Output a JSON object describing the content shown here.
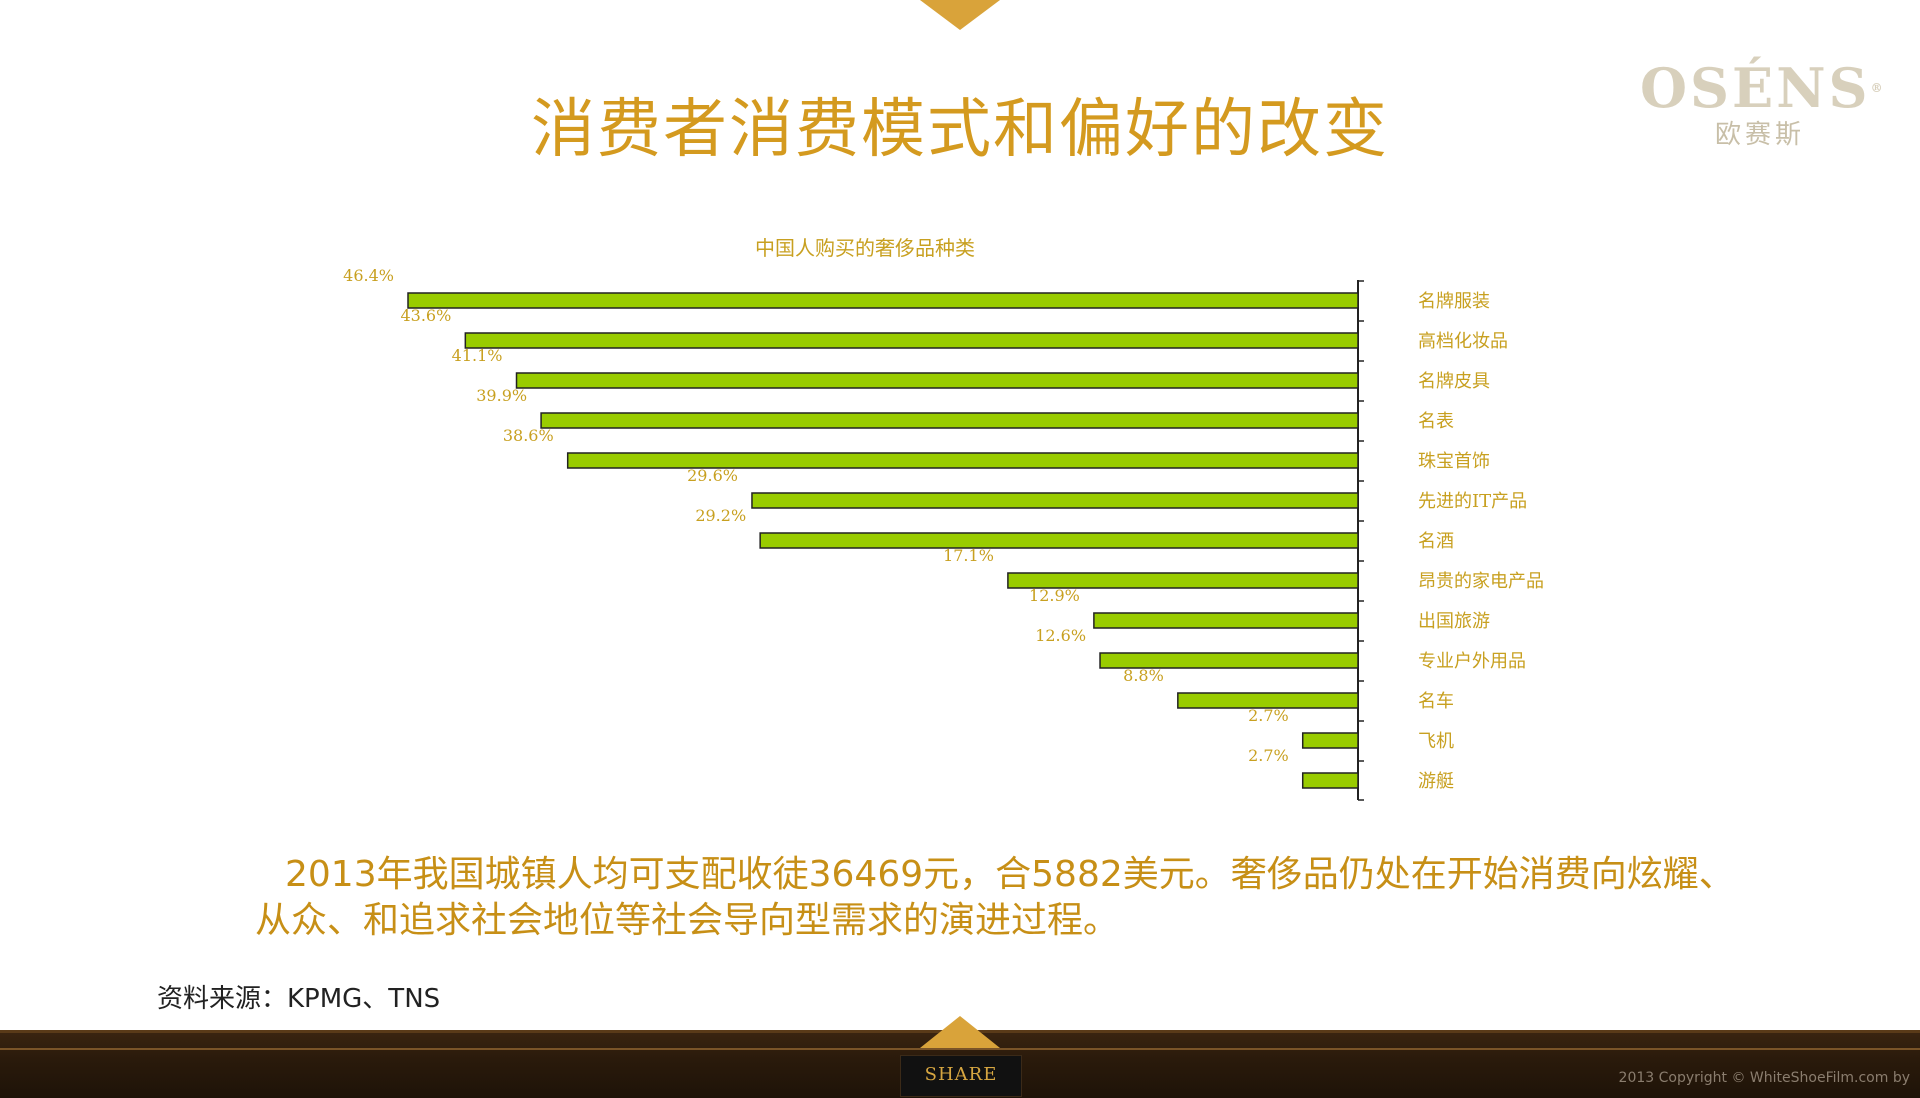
{
  "slide": {
    "title": "消费者消费模式和偏好的改变",
    "logo_name": "OSÉNS",
    "logo_reg": "®",
    "logo_cn": "欧赛斯",
    "body_text": "2013年我国城镇人均可支配收徒36469元，合5882美元。奢侈品仍处在开始消费向炫耀、从众、和追求社会地位等社会导向型需求的演进过程。",
    "source": "资料来源：KPMG、TNS"
  },
  "footer": {
    "share_label": "SHARE",
    "copyright": "2013 Copyright © WhiteShoeFilm.com by"
  },
  "colors": {
    "accent": "#d49a1f",
    "bar_fill": "#99cc00",
    "bar_stroke": "#222222",
    "label_color": "#c8a020"
  },
  "chart_data": {
    "type": "bar",
    "orientation": "horizontal-reversed",
    "title": "中国人购买的奢侈品种类",
    "categories": [
      "名牌服装",
      "高档化妆品",
      "名牌皮具",
      "名表",
      "珠宝首饰",
      "先进的IT产品",
      "名酒",
      "昂贵的家电产品",
      "出国旅游",
      "专业户外用品",
      "名车",
      "飞机",
      "游艇"
    ],
    "values": [
      46.4,
      43.6,
      41.1,
      39.9,
      38.6,
      29.6,
      29.2,
      17.1,
      12.9,
      12.6,
      8.8,
      2.7,
      2.7
    ],
    "value_labels": [
      "46.4%",
      "43.6%",
      "41.1%",
      "39.9%",
      "38.6%",
      "29.6%",
      "29.2%",
      "17.1%",
      "12.9%",
      "12.6%",
      "8.8%",
      "2.7%",
      "2.7%"
    ],
    "unit": "%",
    "xlim": [
      0,
      46.4
    ],
    "grid": false,
    "legend": "none"
  }
}
